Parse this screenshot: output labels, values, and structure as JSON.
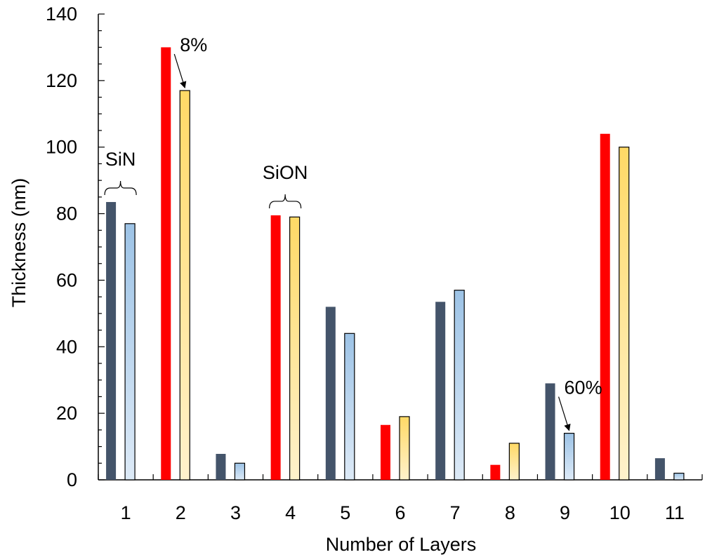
{
  "chart_data": {
    "type": "bar",
    "title": "",
    "xlabel": "Number of Layers",
    "ylabel": "Thickness (nm)",
    "ylim": [
      0,
      140
    ],
    "yticks": [
      0,
      20,
      40,
      60,
      80,
      100,
      120,
      140
    ],
    "grid": false,
    "legend": "none",
    "categories": [
      "1",
      "2",
      "3",
      "4",
      "5",
      "6",
      "7",
      "8",
      "9",
      "10",
      "11"
    ],
    "series": [
      {
        "values": [
          83.5,
          130,
          7.8,
          79.5,
          52,
          16.5,
          53.5,
          4.5,
          29,
          104,
          6.5
        ]
      },
      {
        "values": [
          77,
          117,
          5,
          79,
          44,
          19,
          57,
          11,
          14,
          100,
          2
        ]
      }
    ],
    "colors": {
      "sin_first": "#44546a",
      "sin_second_top": "#9dc3e6",
      "sin_second_bottom": "#ddeaf7",
      "sion_first": "#ff0000",
      "sion_second_top": "#ffd966",
      "sion_second_bottom": "#fff2cc"
    },
    "material_by_layer": [
      "SiN",
      "SiON",
      "SiN",
      "SiON",
      "SiN",
      "SiON",
      "SiN",
      "SiON",
      "SiN",
      "SiON",
      "SiN"
    ],
    "annotations": [
      {
        "text": "SiN",
        "type": "bracket",
        "layer": "1"
      },
      {
        "text": "SiON",
        "type": "bracket",
        "layer": "4"
      },
      {
        "text": "8%",
        "type": "arrow",
        "layer": "2"
      },
      {
        "text": "60%",
        "type": "arrow",
        "layer": "9"
      }
    ]
  }
}
